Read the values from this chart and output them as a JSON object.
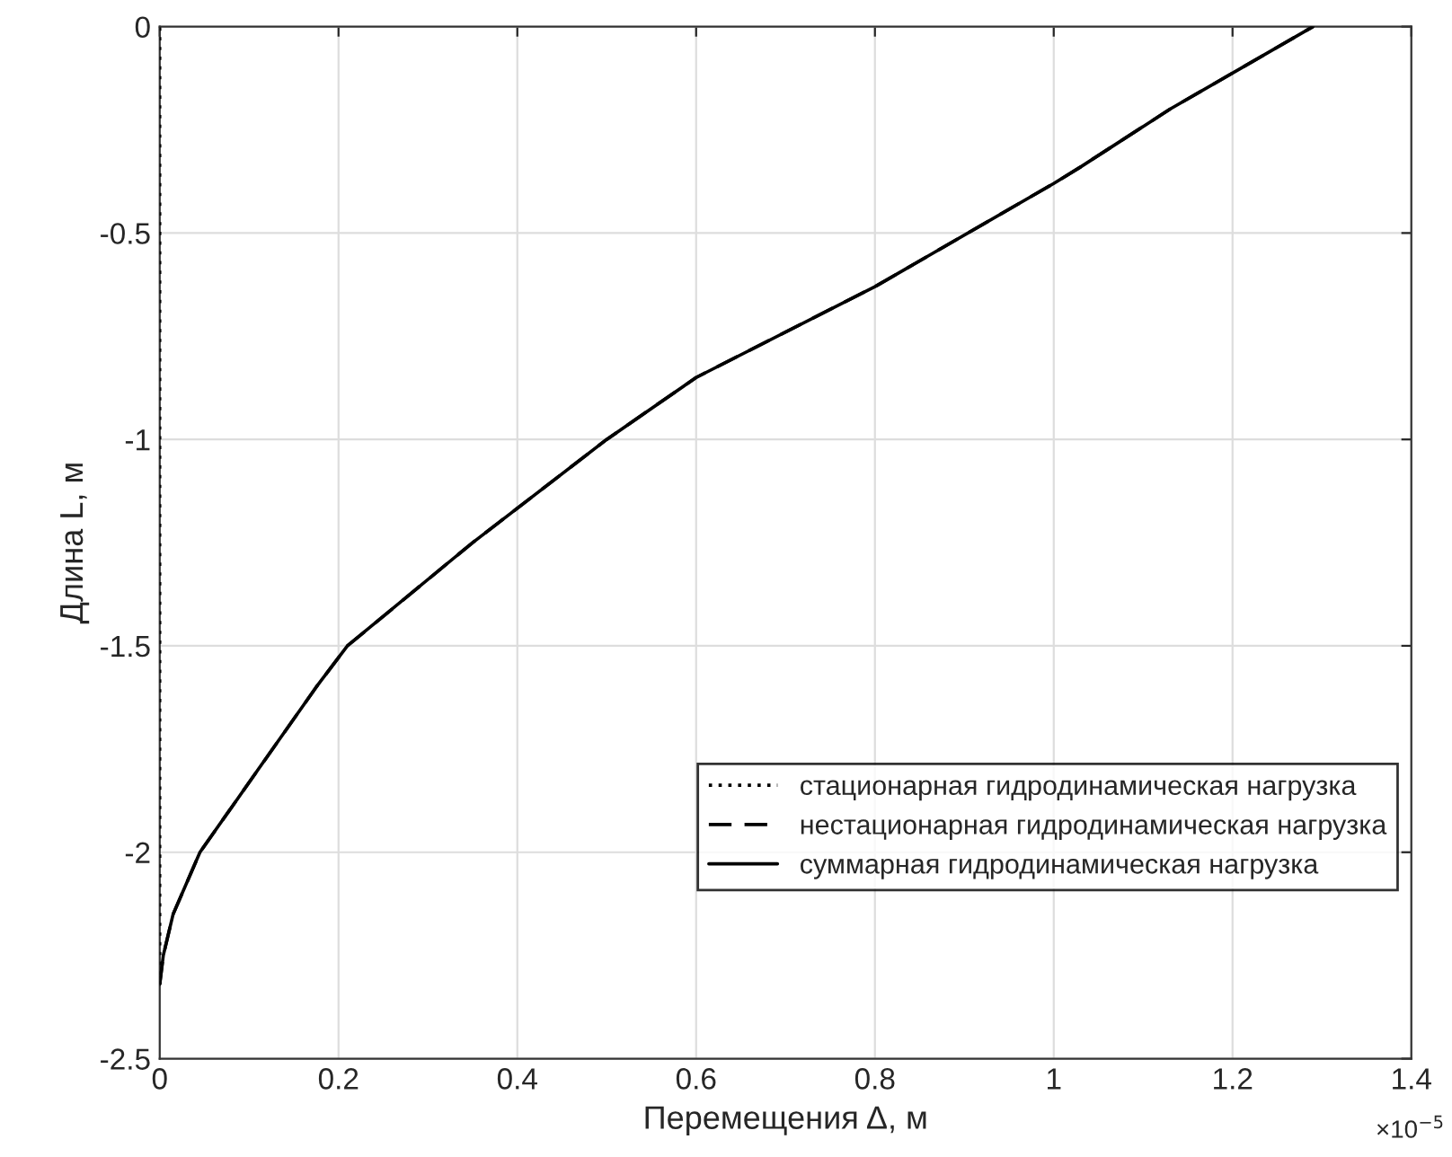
{
  "chart_data": {
    "type": "line",
    "xlabel": "Перемещения Δ, м",
    "ylabel": "Длина L, м",
    "annotations": [
      "×10$^{−5}$"
    ],
    "xlim": [
      0,
      1.4
    ],
    "xticks": [
      0,
      0.2,
      0.4,
      0.6,
      0.8,
      1,
      1.2,
      1.4
    ],
    "ylim": [
      -2.5,
      0
    ],
    "yticks": [
      -2.5,
      -2,
      -1.5,
      -1,
      -0.5,
      0
    ],
    "grid": true,
    "legend": "lower right",
    "series": [
      {
        "name": "стационарная гидродинамическая нагрузка",
        "color": "#000000",
        "line_style": "dotted",
        "x": [
          0,
          0,
          0,
          0,
          0,
          0
        ],
        "values": [
          -2.32,
          -2,
          -1.5,
          -1,
          -0.5,
          0
        ]
      },
      {
        "name": "нестационарная гидродинамическая нагрузка",
        "color": "#000000",
        "line_style": "dashed",
        "x": [
          0,
          0.004,
          0.015,
          0.045,
          0.11,
          0.175,
          0.21,
          0.35,
          0.38,
          0.5,
          0.6,
          0.8,
          1.0,
          1.03,
          1.13,
          1.21,
          1.29
        ],
        "values": [
          -2.32,
          -2.25,
          -2.15,
          -2.0,
          -1.8,
          -1.6,
          -1.5,
          -1.25,
          -1.2,
          -1.0,
          -0.85,
          -0.63,
          -0.38,
          -0.34,
          -0.2,
          -0.1,
          0
        ]
      },
      {
        "name": "суммарная гидродинамическая нагрузка",
        "color": "#000000",
        "line_style": "solid",
        "x": [
          0,
          0.004,
          0.015,
          0.045,
          0.11,
          0.175,
          0.21,
          0.35,
          0.38,
          0.5,
          0.6,
          0.8,
          1.0,
          1.03,
          1.13,
          1.21,
          1.29
        ],
        "values": [
          -2.32,
          -2.25,
          -2.15,
          -2.0,
          -1.8,
          -1.6,
          -1.5,
          -1.25,
          -1.2,
          -1.0,
          -0.85,
          -0.63,
          -0.38,
          -0.34,
          -0.2,
          -0.1,
          0
        ]
      }
    ]
  }
}
